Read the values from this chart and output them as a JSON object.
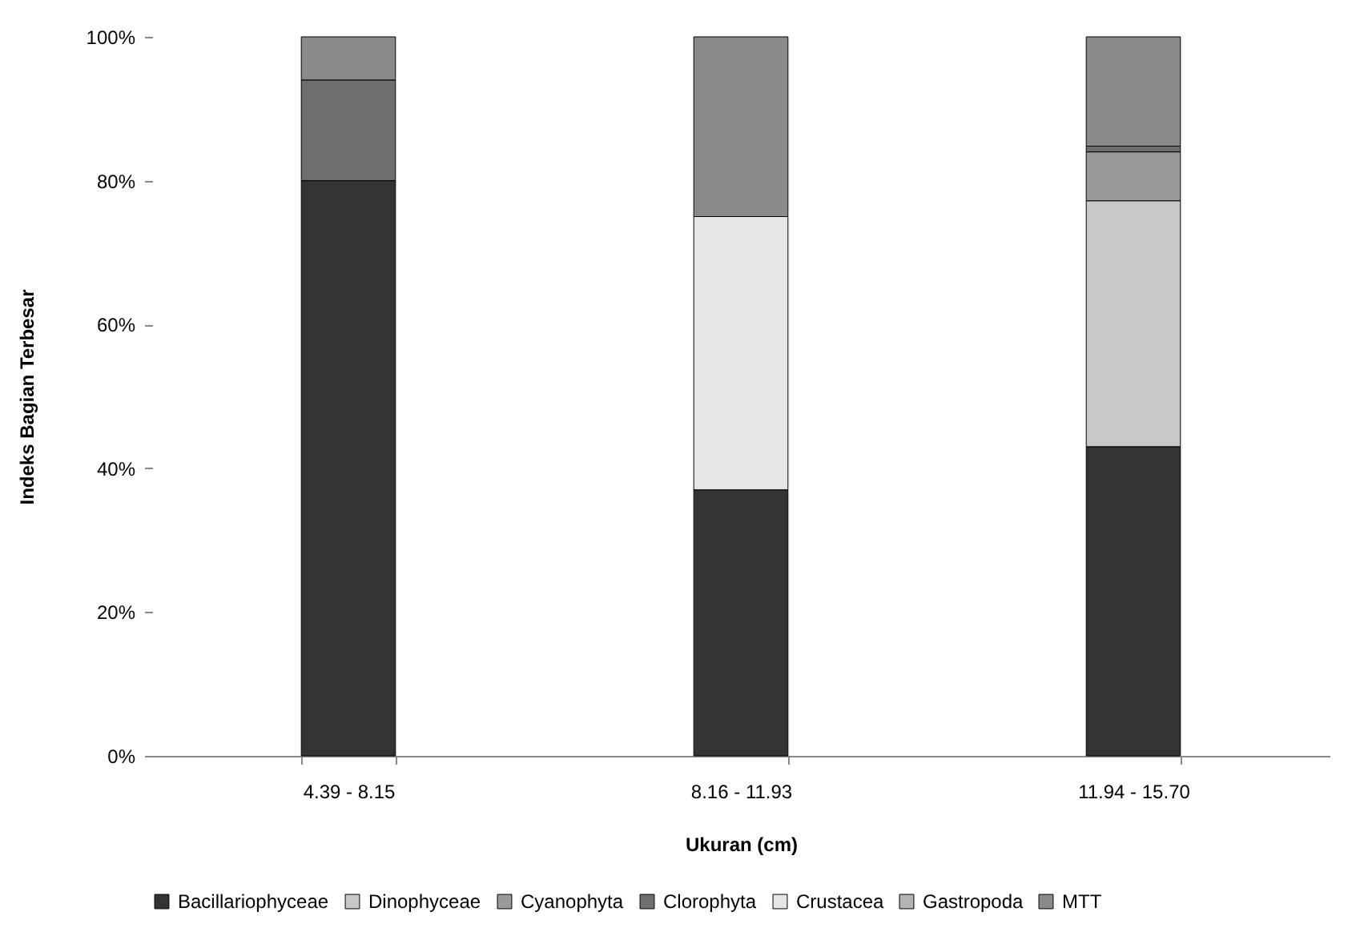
{
  "chart_data": {
    "type": "bar",
    "stacked": true,
    "xlabel": "Ukuran (cm)",
    "ylabel": "Indeks Bagian Terbesar",
    "categories": [
      "4.39 - 8.15",
      "8.16 - 11.93",
      "11.94 - 15.70"
    ],
    "series": [
      {
        "name": "Bacillariophyceae",
        "color": "#333333",
        "values": [
          80,
          37,
          43
        ]
      },
      {
        "name": "Dinophyceae",
        "color": "#c8c8c8",
        "values": [
          null,
          null,
          34.2
        ]
      },
      {
        "name": "Cyanophyta",
        "color": "#9a9a9a",
        "values": [
          null,
          null,
          6.8
        ]
      },
      {
        "name": "Clorophyta",
        "color": "#6e6e6e",
        "values": [
          14,
          null,
          0.8
        ]
      },
      {
        "name": "Crustacea",
        "color": "#e6e6e6",
        "values": [
          null,
          38,
          null
        ]
      },
      {
        "name": "Gastropoda",
        "color": "#b4b4b4",
        "values": [
          null,
          null,
          null
        ]
      },
      {
        "name": "MTT",
        "color": "#8a8a8a",
        "values": [
          6,
          25,
          15.2
        ]
      }
    ],
    "ylim": [
      0,
      100
    ],
    "yticks": [
      {
        "value": 0,
        "label": "0%"
      },
      {
        "value": 20,
        "label": "20%"
      },
      {
        "value": 40,
        "label": "40%"
      },
      {
        "value": 60,
        "label": "60%"
      },
      {
        "value": 80,
        "label": "80%"
      },
      {
        "value": 100,
        "label": "100%"
      }
    ],
    "grid": false,
    "legend": "bottom"
  }
}
